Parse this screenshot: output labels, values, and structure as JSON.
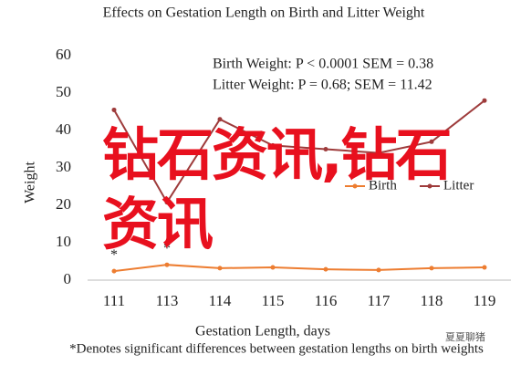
{
  "chart_data": {
    "type": "line",
    "title": "Effects on Gestation Length on Birth and Litter Weight",
    "x_label": "Gestation Length, days",
    "y_label": "Weight",
    "categories": [
      "111",
      "113",
      "114",
      "115",
      "116",
      "117",
      "118",
      "119"
    ],
    "series": [
      {
        "name": "Birth",
        "color": "#ed7d31",
        "values": [
          2.4,
          4.1,
          3.2,
          3.4,
          2.9,
          2.7,
          3.2,
          3.4
        ]
      },
      {
        "name": "Litter",
        "color": "#9e3b3b",
        "values": [
          45.5,
          20.8,
          43,
          36,
          35,
          34,
          37,
          48
        ]
      }
    ],
    "ylim": [
      0,
      60
    ],
    "yticks": [
      0,
      10,
      20,
      30,
      40,
      50,
      60
    ],
    "annotations": [
      "Birth Weight: P < 0.0001 SEM = 0.38",
      "Litter Weight: P = 0.68; SEM = 11.42"
    ],
    "significance": [
      {
        "text": "*",
        "category": "111"
      },
      {
        "text": "*",
        "category": "113"
      }
    ],
    "footnote": "*Denotes significant differences between gestation lengths on birth weights",
    "legend": "bottom-right",
    "watermark": "钻石资讯,钻石资讯",
    "logo": "夏夏聊猪"
  }
}
